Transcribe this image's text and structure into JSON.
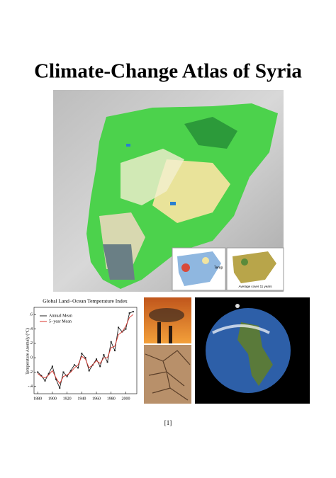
{
  "title": "Climate-Change Atlas of Syria",
  "figures": {
    "map_insets": [
      {
        "legend_title": "Temp"
      },
      {
        "caption": "Average cover 11 years"
      }
    ],
    "temperature_chart": {
      "type": "line",
      "title": "Global Land−Ocean Temperature Index",
      "y_label": "Temperature Anomaly (°C)",
      "x": [
        1880,
        1885,
        1890,
        1895,
        1900,
        1905,
        1910,
        1915,
        1920,
        1925,
        1930,
        1935,
        1940,
        1945,
        1950,
        1955,
        1960,
        1965,
        1970,
        1975,
        1980,
        1985,
        1990,
        1995,
        2000,
        2005,
        2010
      ],
      "series": [
        {
          "name": "Annual Mean",
          "color": "#222222",
          "values": [
            -0.2,
            -0.25,
            -0.32,
            -0.22,
            -0.12,
            -0.3,
            -0.42,
            -0.2,
            -0.26,
            -0.18,
            -0.1,
            -0.14,
            0.06,
            0.0,
            -0.18,
            -0.1,
            -0.02,
            -0.12,
            0.04,
            -0.06,
            0.22,
            0.1,
            0.42,
            0.36,
            0.4,
            0.62,
            0.64
          ]
        },
        {
          "name": "5−year Mean",
          "color": "#d9342b",
          "values": [
            -0.22,
            -0.26,
            -0.28,
            -0.24,
            -0.18,
            -0.28,
            -0.36,
            -0.26,
            -0.24,
            -0.2,
            -0.14,
            -0.1,
            0.02,
            -0.02,
            -0.14,
            -0.1,
            -0.04,
            -0.08,
            0.0,
            0.0,
            0.14,
            0.16,
            0.32,
            0.36,
            0.44,
            0.56,
            0.6
          ]
        }
      ],
      "xlim": [
        1875,
        2015
      ],
      "xticks": [
        1880,
        1900,
        1920,
        1940,
        1960,
        1980,
        2000
      ],
      "ylim": [
        -0.5,
        0.7
      ],
      "yticks": [
        {
          "value": 0.6,
          "label": ".6"
        },
        {
          "value": 0.4,
          "label": ".4"
        },
        {
          "value": 0.2,
          "label": ".2"
        },
        0,
        {
          "value": -0.2,
          "label": "-.2"
        },
        {
          "value": -0.4,
          "label": "-.4"
        }
      ]
    }
  },
  "page_number": "[1]"
}
